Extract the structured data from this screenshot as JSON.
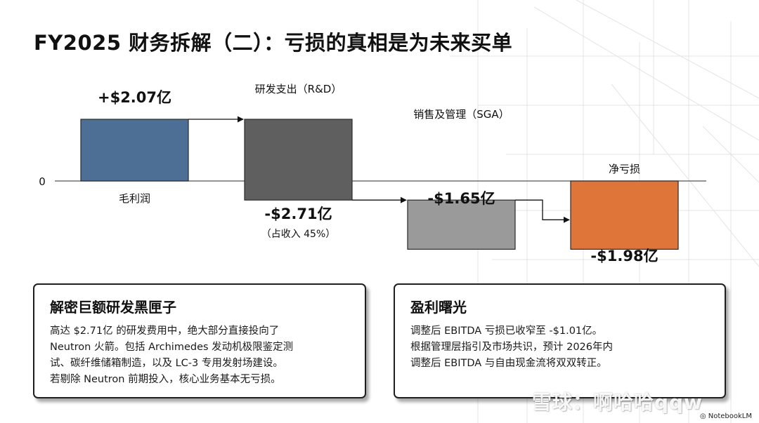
{
  "title": "FY2025 财务拆解（二）：亏损的真相是为未来买单",
  "chart_data": {
    "type": "bar",
    "subtype": "waterfall",
    "unit": "亿美元",
    "zero_label": "0",
    "steps": [
      {
        "category": "毛利润",
        "value": 2.07,
        "label": "+$2.07亿",
        "sublabel": "",
        "color": "#4d6f96"
      },
      {
        "category": "研发支出（R&D）",
        "value": -2.71,
        "label": "-$2.71亿",
        "sublabel": "（占收入 45%）",
        "color": "#5f5f5f"
      },
      {
        "category": "销售及管理（SGA）",
        "value": -1.65,
        "label": "-$1.65亿",
        "sublabel": "",
        "color": "#9a9a9a"
      },
      {
        "category": "净亏损",
        "value": -1.98,
        "label": "-$1.98亿",
        "sublabel": "",
        "color": "#e0753a",
        "is_total": true
      }
    ]
  },
  "cards": {
    "left": {
      "title": "解密巨额研发黑匣子",
      "lines": [
        "高达 $2.71亿 的研发费用中，绝大部分直接投向了",
        "Neutron 火箭。包括 Archimedes 发动机极限鉴定测",
        "试、碳纤维储箱制造，以及 LC-3 专用发射场建设。",
        "若剔除 Neutron 前期投入，核心业务基本无亏损。"
      ]
    },
    "right": {
      "title": "盈利曙光",
      "lines": [
        "调整后 EBITDA 亏损已收窄至 -$1.01亿。",
        "根据管理层指引及市场共识，预计 2026年内",
        "调整后 EBITDA 与自由现金流将双双转正。"
      ]
    }
  },
  "watermark": "雪球：啊哈哈qqw",
  "brand": "NotebookLM"
}
